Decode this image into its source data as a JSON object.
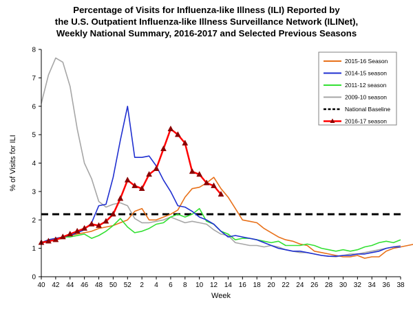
{
  "chart_data": {
    "type": "line",
    "title_lines": [
      "Percentage of Visits for Influenza-like Illness (ILI) Reported by",
      "the U.S. Outpatient Influenza-like Illness Surveillance Network (ILINet),",
      "Weekly National Summary, 2016-2017 and Selected Previous Seasons"
    ],
    "xlabel": "Week",
    "ylabel": "% of Visits for ILI",
    "ylim": [
      0,
      8
    ],
    "yticks": [
      0,
      1,
      2,
      3,
      4,
      5,
      6,
      7,
      8
    ],
    "x_tick_labels": [
      "40",
      "42",
      "44",
      "46",
      "48",
      "50",
      "52",
      "2",
      "4",
      "6",
      "8",
      "10",
      "12",
      "14",
      "16",
      "18",
      "20",
      "22",
      "24",
      "26",
      "28",
      "30",
      "32",
      "34",
      "36",
      "38"
    ],
    "x_positions_per_label": 2,
    "grid": false,
    "legend_position": "top-right",
    "baseline": {
      "name": "National Baseline",
      "value": 2.2,
      "color": "#000000"
    },
    "series": [
      {
        "name": "2015-16 Season",
        "color": "#E8711A",
        "values": [
          1.2,
          1.25,
          1.3,
          1.35,
          1.45,
          1.5,
          1.55,
          1.6,
          1.7,
          1.75,
          1.8,
          1.9,
          2.0,
          2.3,
          2.4,
          2.0,
          2.0,
          2.1,
          2.2,
          2.35,
          2.8,
          3.1,
          3.15,
          3.3,
          3.5,
          3.1,
          2.8,
          2.4,
          2.0,
          1.95,
          1.9,
          1.7,
          1.55,
          1.4,
          1.3,
          1.25,
          1.15,
          1.1,
          0.9,
          0.85,
          0.8,
          0.75,
          0.7,
          0.7,
          0.75,
          0.65,
          0.7,
          0.7,
          0.9,
          1.0,
          1.05,
          1.1,
          1.15
        ]
      },
      {
        "name": "2014-15 season",
        "color": "#1F2FD0",
        "values": [
          1.2,
          1.3,
          1.35,
          1.4,
          1.45,
          1.55,
          1.65,
          1.9,
          2.5,
          2.55,
          3.5,
          4.8,
          6.0,
          4.2,
          4.2,
          4.25,
          3.9,
          3.4,
          3.0,
          2.5,
          2.45,
          2.3,
          2.1,
          2.0,
          1.85,
          1.6,
          1.4,
          1.45,
          1.4,
          1.35,
          1.3,
          1.2,
          1.1,
          1.0,
          0.95,
          0.9,
          0.9,
          0.85,
          0.8,
          0.75,
          0.72,
          0.72,
          0.75,
          0.75,
          0.8,
          0.8,
          0.85,
          0.9,
          1.0,
          1.05,
          1.05
        ]
      },
      {
        "name": "2011-12 season",
        "color": "#33E033",
        "values": [
          1.2,
          1.3,
          1.35,
          1.4,
          1.4,
          1.45,
          1.5,
          1.35,
          1.45,
          1.6,
          1.8,
          2.05,
          1.75,
          1.55,
          1.6,
          1.7,
          1.85,
          1.9,
          2.1,
          2.2,
          2.1,
          2.2,
          2.4,
          1.95,
          1.85,
          1.6,
          1.5,
          1.3,
          1.35,
          1.35,
          1.3,
          1.25,
          1.2,
          1.25,
          1.1,
          1.1,
          1.1,
          1.15,
          1.1,
          1.0,
          0.95,
          0.9,
          0.95,
          0.9,
          0.95,
          1.05,
          1.1,
          1.2,
          1.25,
          1.2,
          1.3
        ]
      },
      {
        "name": "2009-10 season",
        "color": "#A6A6A6",
        "values": [
          6.1,
          7.1,
          7.7,
          7.55,
          6.7,
          5.2,
          4.0,
          3.45,
          2.65,
          2.45,
          2.55,
          2.6,
          2.5,
          2.05,
          1.9,
          1.9,
          1.95,
          2.0,
          2.1,
          2.0,
          1.9,
          1.95,
          1.9,
          1.85,
          1.65,
          1.5,
          1.45,
          1.2,
          1.15,
          1.1,
          1.1,
          1.05,
          1.1,
          1.05,
          0.95,
          0.9,
          0.85,
          0.85,
          0.8,
          0.75,
          0.72,
          0.7,
          0.75,
          0.8,
          0.8,
          0.85,
          0.9,
          0.95,
          1.0,
          1.05,
          1.1
        ]
      },
      {
        "name": "2016-17 season",
        "color": "#FF0000",
        "marker": "triangle",
        "marker_color": "#8B0000",
        "values": [
          1.2,
          1.25,
          1.3,
          1.4,
          1.5,
          1.6,
          1.7,
          1.85,
          1.8,
          1.95,
          2.2,
          2.75,
          3.4,
          3.2,
          3.1,
          3.6,
          3.8,
          4.5,
          5.2,
          5.0,
          4.7,
          3.7,
          3.6,
          3.3,
          3.2,
          2.9
        ]
      }
    ]
  }
}
